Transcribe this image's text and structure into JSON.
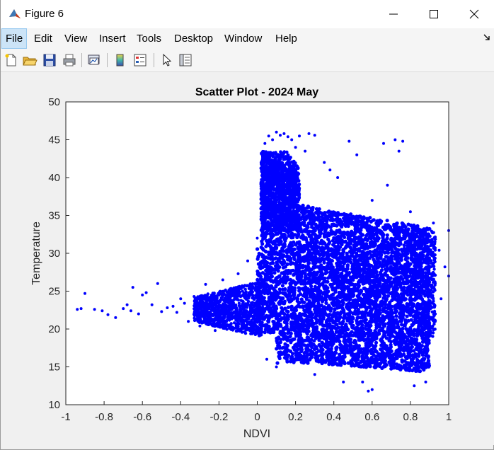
{
  "window": {
    "title": "Figure 6",
    "minimize_icon": "minimize-icon",
    "maximize_icon": "maximize-icon",
    "close_icon": "close-icon"
  },
  "menu": {
    "items": [
      "File",
      "Edit",
      "View",
      "Insert",
      "Tools",
      "Desktop",
      "Window",
      "Help"
    ],
    "active": "File"
  },
  "toolbar": {
    "icons": [
      "new-figure-icon",
      "open-file-icon",
      "save-icon",
      "print-icon",
      "link-plot-icon",
      "insert-colorbar-icon",
      "insert-legend-icon",
      "edit-plot-icon",
      "property-inspector-icon"
    ]
  },
  "colors": {
    "marker": "#0000ff",
    "axes_background": "#ffffff",
    "figure_background": "#f0f0f0"
  },
  "chart_data": {
    "type": "scatter",
    "title": "Scatter Plot - 2024 May",
    "xlabel": "NDVI",
    "ylabel": "Temperature",
    "xlim": [
      -1,
      1
    ],
    "ylim": [
      10,
      50
    ],
    "xticks": [
      "-1",
      "-0.8",
      "-0.6",
      "-0.4",
      "-0.2",
      "0",
      "0.2",
      "0.4",
      "0.6",
      "0.8",
      "1"
    ],
    "yticks": [
      "10",
      "15",
      "20",
      "25",
      "30",
      "35",
      "40",
      "45",
      "50"
    ],
    "grid": false,
    "marker_color": "#0000ff",
    "dense_regions": [
      {
        "x_range": [
          0.0,
          0.92
        ],
        "y_range": [
          14,
          36
        ]
      },
      {
        "x_range": [
          0.02,
          0.2
        ],
        "y_range": [
          34,
          46
        ]
      },
      {
        "x_range": [
          -0.35,
          0.05
        ],
        "y_range": [
          19,
          26
        ]
      }
    ],
    "points": [
      [
        -0.94,
        22.6
      ],
      [
        -0.92,
        22.7
      ],
      [
        -0.9,
        24.7
      ],
      [
        -0.85,
        22.6
      ],
      [
        -0.81,
        22.4
      ],
      [
        -0.78,
        21.9
      ],
      [
        -0.74,
        21.5
      ],
      [
        -0.7,
        22.7
      ],
      [
        -0.68,
        23.2
      ],
      [
        -0.66,
        22.4
      ],
      [
        -0.65,
        25.5
      ],
      [
        -0.62,
        22.0
      ],
      [
        -0.6,
        24.5
      ],
      [
        -0.58,
        24.8
      ],
      [
        -0.55,
        23.2
      ],
      [
        -0.52,
        26.0
      ],
      [
        -0.5,
        22.3
      ],
      [
        -0.47,
        22.8
      ],
      [
        -0.44,
        23.0
      ],
      [
        -0.42,
        22.2
      ],
      [
        -0.4,
        24.0
      ],
      [
        -0.38,
        23.4
      ],
      [
        -0.36,
        21.0
      ],
      [
        -0.33,
        24.3
      ],
      [
        -0.3,
        20.4
      ],
      [
        -0.27,
        25.9
      ],
      [
        -0.22,
        19.8
      ],
      [
        -0.18,
        26.5
      ],
      [
        -0.1,
        27.3
      ],
      [
        -0.05,
        29.0
      ],
      [
        0.0,
        32.0
      ],
      [
        0.02,
        42.0
      ],
      [
        0.04,
        44.5
      ],
      [
        0.06,
        45.5
      ],
      [
        0.08,
        45.0
      ],
      [
        0.1,
        46.0
      ],
      [
        0.12,
        45.6
      ],
      [
        0.14,
        45.8
      ],
      [
        0.16,
        45.4
      ],
      [
        0.18,
        45.0
      ],
      [
        0.2,
        44.0
      ],
      [
        0.22,
        45.5
      ],
      [
        0.25,
        43.5
      ],
      [
        0.27,
        45.8
      ],
      [
        0.3,
        45.6
      ],
      [
        0.35,
        42.0
      ],
      [
        0.38,
        41.0
      ],
      [
        0.42,
        40.0
      ],
      [
        0.48,
        44.8
      ],
      [
        0.52,
        43.0
      ],
      [
        0.6,
        37.0
      ],
      [
        0.66,
        44.5
      ],
      [
        0.68,
        39.0
      ],
      [
        0.72,
        45.0
      ],
      [
        0.74,
        43.5
      ],
      [
        0.76,
        44.8
      ],
      [
        0.8,
        35.5
      ],
      [
        0.88,
        33.2
      ],
      [
        0.92,
        34.0
      ],
      [
        0.95,
        30.4
      ],
      [
        0.98,
        28.2
      ],
      [
        1.0,
        33.0
      ],
      [
        1.0,
        27.0
      ],
      [
        0.96,
        24.0
      ],
      [
        0.93,
        22.0
      ],
      [
        0.88,
        13.0
      ],
      [
        0.82,
        12.5
      ],
      [
        0.6,
        12.0
      ],
      [
        0.58,
        11.8
      ],
      [
        0.55,
        13.0
      ],
      [
        0.45,
        13.0
      ],
      [
        0.3,
        14.0
      ],
      [
        0.1,
        15.0
      ],
      [
        0.05,
        16.0
      ],
      [
        0.2,
        16.5
      ]
    ]
  }
}
